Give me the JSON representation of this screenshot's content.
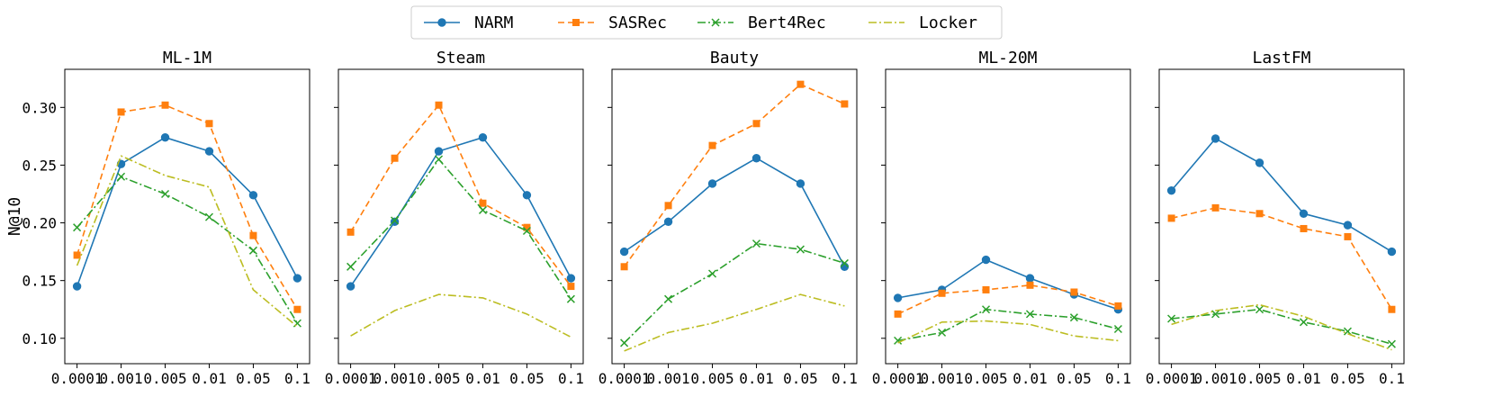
{
  "legend": {
    "entries": [
      {
        "name": "NARM",
        "color": "#1f77b4",
        "dash": "solid",
        "marker": "circle"
      },
      {
        "name": "SASRec",
        "color": "#ff7f0e",
        "dash": "dashed",
        "marker": "square"
      },
      {
        "name": "Bert4Rec",
        "color": "#2ca02c",
        "dash": "dashdot",
        "marker": "x"
      },
      {
        "name": "Locker",
        "color": "#bcbd22",
        "dash": "dashdot",
        "marker": "none"
      }
    ]
  },
  "chart_data": {
    "type": "line",
    "ylabel": "N@10",
    "ylim": [
      0.078,
      0.333
    ],
    "yticks": [
      0.1,
      0.15,
      0.2,
      0.25,
      0.3
    ],
    "ytick_labels": [
      "0.10",
      "0.15",
      "0.20",
      "0.25",
      "0.30"
    ],
    "categories": [
      "0.0001",
      "0.001",
      "0.005",
      "0.01",
      "0.05",
      "0.1"
    ],
    "panels": [
      {
        "title": "ML-1M",
        "series": [
          {
            "name": "NARM",
            "values": [
              0.145,
              0.251,
              0.274,
              0.262,
              0.224,
              0.152
            ]
          },
          {
            "name": "SASRec",
            "values": [
              0.172,
              0.296,
              0.302,
              0.286,
              0.189,
              0.125
            ]
          },
          {
            "name": "Bert4Rec",
            "values": [
              0.196,
              0.24,
              0.225,
              0.205,
              0.176,
              0.113
            ]
          },
          {
            "name": "Locker",
            "values": [
              0.163,
              0.258,
              0.241,
              0.231,
              0.142,
              0.11
            ]
          }
        ]
      },
      {
        "title": "Steam",
        "series": [
          {
            "name": "NARM",
            "values": [
              0.145,
              0.201,
              0.262,
              0.274,
              0.224,
              0.152
            ]
          },
          {
            "name": "SASRec",
            "values": [
              0.192,
              0.256,
              0.302,
              0.217,
              0.196,
              0.145
            ]
          },
          {
            "name": "Bert4Rec",
            "values": [
              0.162,
              0.202,
              0.255,
              0.211,
              0.193,
              0.134
            ]
          },
          {
            "name": "Locker",
            "values": [
              0.102,
              0.124,
              0.138,
              0.135,
              0.121,
              0.101
            ]
          }
        ]
      },
      {
        "title": "Bauty",
        "series": [
          {
            "name": "NARM",
            "values": [
              0.175,
              0.201,
              0.234,
              0.256,
              0.234,
              0.162
            ]
          },
          {
            "name": "SASRec",
            "values": [
              0.162,
              0.215,
              0.267,
              0.286,
              0.32,
              0.303
            ]
          },
          {
            "name": "Bert4Rec",
            "values": [
              0.096,
              0.134,
              0.156,
              0.182,
              0.177,
              0.165
            ]
          },
          {
            "name": "Locker",
            "values": [
              0.089,
              0.105,
              0.113,
              0.125,
              0.138,
              0.128
            ]
          }
        ]
      },
      {
        "title": "ML-20M",
        "series": [
          {
            "name": "NARM",
            "values": [
              0.135,
              0.142,
              0.168,
              0.152,
              0.138,
              0.125
            ]
          },
          {
            "name": "SASRec",
            "values": [
              0.121,
              0.139,
              0.142,
              0.146,
              0.14,
              0.128
            ]
          },
          {
            "name": "Bert4Rec",
            "values": [
              0.098,
              0.105,
              0.125,
              0.121,
              0.118,
              0.108
            ]
          },
          {
            "name": "Locker",
            "values": [
              0.096,
              0.114,
              0.115,
              0.112,
              0.102,
              0.098
            ]
          }
        ]
      },
      {
        "title": "LastFM",
        "series": [
          {
            "name": "NARM",
            "values": [
              0.228,
              0.273,
              0.252,
              0.208,
              0.198,
              0.175
            ]
          },
          {
            "name": "SASRec",
            "values": [
              0.204,
              0.213,
              0.208,
              0.195,
              0.188,
              0.125
            ]
          },
          {
            "name": "Bert4Rec",
            "values": [
              0.117,
              0.121,
              0.125,
              0.114,
              0.106,
              0.095
            ]
          },
          {
            "name": "Locker",
            "values": [
              0.112,
              0.124,
              0.129,
              0.119,
              0.104,
              0.09
            ]
          }
        ]
      }
    ]
  }
}
